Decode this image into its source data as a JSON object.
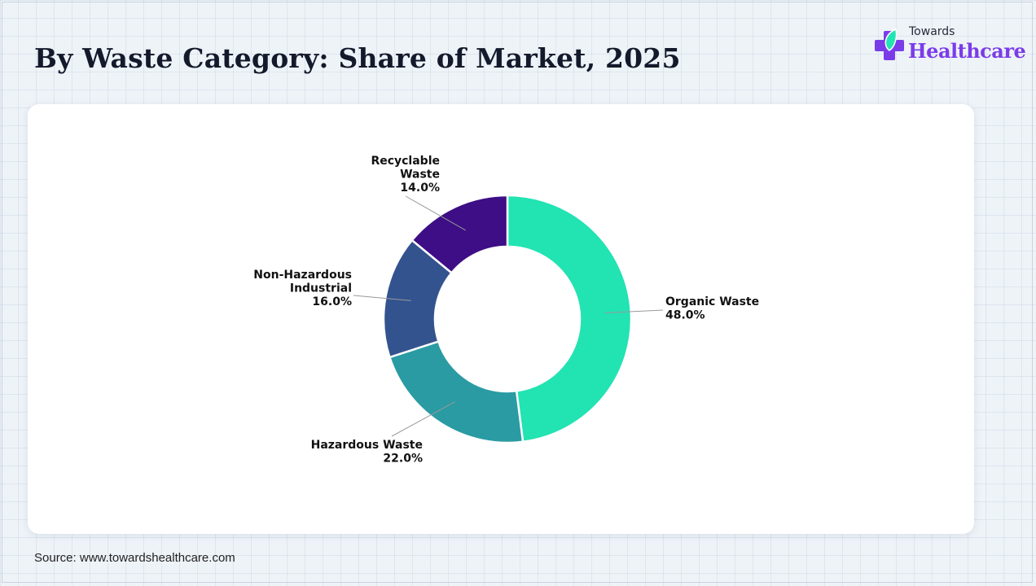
{
  "title": "By Waste Category: Share of Market, 2025",
  "logo": {
    "line1": "Towards",
    "line2": "Healthcare"
  },
  "source": "Source: www.towardshealthcare.com",
  "colors": {
    "organic": "#22e3b2",
    "hazardous": "#2a9ba3",
    "nonhazardous": "#33538f",
    "recyclable": "#3d0e85"
  },
  "chart_data": {
    "type": "pie",
    "donut": true,
    "categories": [
      "Organic Waste",
      "Hazardous Waste",
      "Non-Hazardous Industrial",
      "Recyclable Waste"
    ],
    "values": [
      48.0,
      22.0,
      16.0,
      14.0
    ],
    "label_lines": [
      [
        "Organic Waste",
        "48.0%"
      ],
      [
        "Hazardous Waste",
        "22.0%"
      ],
      [
        "Non-Hazardous",
        "Industrial",
        "16.0%"
      ],
      [
        "Recyclable",
        "Waste",
        "14.0%"
      ]
    ],
    "title": "By Waste Category: Share of Market, 2025"
  }
}
